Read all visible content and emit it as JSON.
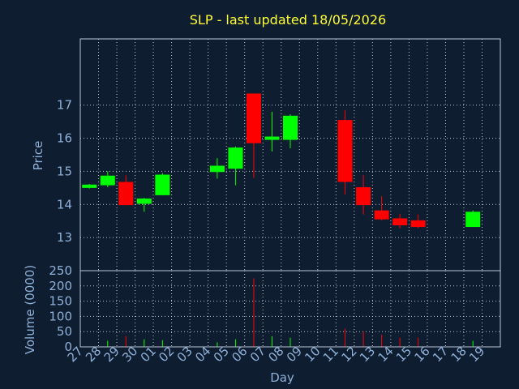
{
  "chart_data": {
    "type": "candlestick",
    "title": "SLP - last updated 18/05/2026",
    "xlabel": "Day",
    "price_ylabel": "Price",
    "volume_ylabel": "Volume (0000)",
    "x_ticks": [
      "27",
      "28",
      "29",
      "30",
      "01",
      "02",
      "03",
      "04",
      "05",
      "06",
      "07",
      "08",
      "09",
      "10",
      "11",
      "12",
      "13",
      "14",
      "15",
      "16",
      "17",
      "18",
      "19"
    ],
    "price_ylim": [
      12.0,
      19.0
    ],
    "price_ticks": [
      13,
      14,
      15,
      16,
      17
    ],
    "volume_ylim": [
      0,
      250
    ],
    "volume_ticks": [
      0,
      50,
      100,
      150,
      200,
      250
    ],
    "grid": true,
    "up_color": "#00ff00",
    "down_color": "#ff0000",
    "candles": [
      {
        "day": "27",
        "open": 14.5,
        "high": 14.62,
        "low": 14.48,
        "close": 14.6,
        "volume": 0
      },
      {
        "day": "28",
        "open": 14.58,
        "high": 15.0,
        "low": 14.52,
        "close": 14.87,
        "volume": 20
      },
      {
        "day": "29",
        "open": 14.68,
        "high": 14.88,
        "low": 13.98,
        "close": 13.98,
        "volume": 35
      },
      {
        "day": "30",
        "open": 14.02,
        "high": 14.2,
        "low": 13.78,
        "close": 14.18,
        "volume": 25
      },
      {
        "day": "01",
        "open": 14.28,
        "high": 14.95,
        "low": 14.28,
        "close": 14.9,
        "volume": 22
      },
      {
        "day": "04",
        "open": 14.98,
        "high": 15.4,
        "low": 14.78,
        "close": 15.17,
        "volume": 15
      },
      {
        "day": "05",
        "open": 15.08,
        "high": 15.75,
        "low": 14.58,
        "close": 15.72,
        "volume": 25
      },
      {
        "day": "06",
        "open": 17.35,
        "high": 17.35,
        "low": 14.8,
        "close": 15.85,
        "volume": 225
      },
      {
        "day": "07",
        "open": 15.95,
        "high": 16.8,
        "low": 15.6,
        "close": 16.05,
        "volume": 35
      },
      {
        "day": "08",
        "open": 15.95,
        "high": 16.72,
        "low": 15.7,
        "close": 16.68,
        "volume": 30
      },
      {
        "day": "11",
        "open": 16.55,
        "high": 16.85,
        "low": 14.3,
        "close": 14.68,
        "volume": 60
      },
      {
        "day": "12",
        "open": 14.52,
        "high": 14.88,
        "low": 13.7,
        "close": 13.98,
        "volume": 50
      },
      {
        "day": "13",
        "open": 13.82,
        "high": 14.25,
        "low": 13.52,
        "close": 13.55,
        "volume": 40
      },
      {
        "day": "14",
        "open": 13.58,
        "high": 13.72,
        "low": 13.28,
        "close": 13.37,
        "volume": 30
      },
      {
        "day": "15",
        "open": 13.52,
        "high": 13.7,
        "low": 13.28,
        "close": 13.32,
        "volume": 30
      },
      {
        "day": "18",
        "open": 13.32,
        "high": 13.82,
        "low": 13.32,
        "close": 13.78,
        "volume": 20
      }
    ]
  }
}
